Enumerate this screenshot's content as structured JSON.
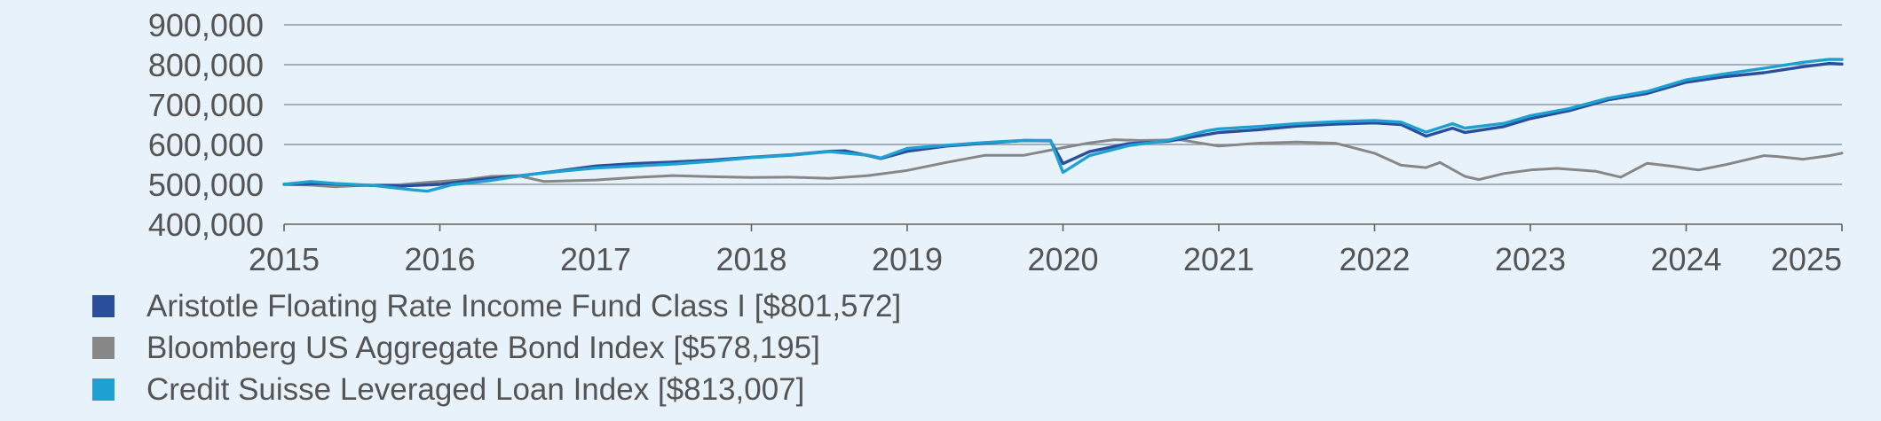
{
  "chart_data": {
    "type": "line",
    "title": "",
    "xlabel": "",
    "ylabel": "",
    "xlim": [
      2015,
      2025
    ],
    "ylim": [
      400000,
      900000
    ],
    "y_ticks": [
      {
        "value": 400000,
        "label": "400,000"
      },
      {
        "value": 500000,
        "label": "500,000"
      },
      {
        "value": 600000,
        "label": "600,000"
      },
      {
        "value": 700000,
        "label": "700,000"
      },
      {
        "value": 800000,
        "label": "800,000"
      },
      {
        "value": 900000,
        "label": "900,000"
      }
    ],
    "x_ticks": [
      {
        "value": 2015,
        "label": "2015"
      },
      {
        "value": 2016,
        "label": "2016"
      },
      {
        "value": 2017,
        "label": "2017"
      },
      {
        "value": 2018,
        "label": "2018"
      },
      {
        "value": 2019,
        "label": "2019"
      },
      {
        "value": 2020,
        "label": "2020"
      },
      {
        "value": 2021,
        "label": "2021"
      },
      {
        "value": 2022,
        "label": "2022"
      },
      {
        "value": 2023,
        "label": "2023"
      },
      {
        "value": 2024,
        "label": "2024"
      },
      {
        "value": 2025,
        "label": "2025"
      }
    ],
    "grid": true,
    "legend_position": "bottom-left",
    "series": [
      {
        "name": "Aristotle Floating Rate Income Fund Class I [$801,572]",
        "color": "#2a4e9c",
        "points": [
          [
            2015.0,
            500000
          ],
          [
            2015.25,
            502000
          ],
          [
            2015.5,
            498000
          ],
          [
            2015.75,
            496000
          ],
          [
            2016.0,
            500000
          ],
          [
            2016.25,
            512000
          ],
          [
            2016.5,
            521000
          ],
          [
            2016.75,
            533000
          ],
          [
            2017.0,
            546000
          ],
          [
            2017.25,
            552000
          ],
          [
            2017.5,
            556000
          ],
          [
            2017.75,
            561000
          ],
          [
            2018.0,
            568000
          ],
          [
            2018.25,
            574000
          ],
          [
            2018.5,
            583000
          ],
          [
            2018.6,
            584000
          ],
          [
            2018.75,
            572000
          ],
          [
            2018.83,
            565000
          ],
          [
            2019.0,
            583000
          ],
          [
            2019.25,
            596000
          ],
          [
            2019.5,
            603000
          ],
          [
            2019.75,
            610000
          ],
          [
            2019.92,
            609000
          ],
          [
            2020.0,
            552000
          ],
          [
            2020.17,
            582000
          ],
          [
            2020.42,
            602000
          ],
          [
            2020.67,
            608000
          ],
          [
            2020.92,
            625000
          ],
          [
            2021.0,
            630000
          ],
          [
            2021.25,
            637000
          ],
          [
            2021.5,
            646000
          ],
          [
            2021.75,
            651000
          ],
          [
            2022.0,
            654000
          ],
          [
            2022.17,
            650000
          ],
          [
            2022.33,
            621000
          ],
          [
            2022.5,
            641000
          ],
          [
            2022.58,
            630000
          ],
          [
            2022.83,
            645000
          ],
          [
            2023.0,
            665000
          ],
          [
            2023.25,
            685000
          ],
          [
            2023.5,
            712000
          ],
          [
            2023.75,
            728000
          ],
          [
            2024.0,
            756000
          ],
          [
            2024.25,
            770000
          ],
          [
            2024.5,
            780000
          ],
          [
            2024.75,
            795000
          ],
          [
            2024.92,
            803000
          ],
          [
            2025.0,
            801572
          ]
        ]
      },
      {
        "name": "Bloomberg US Aggregate Bond Index [$578,195]",
        "color": "#878787",
        "points": [
          [
            2015.0,
            500000
          ],
          [
            2015.17,
            498000
          ],
          [
            2015.33,
            494000
          ],
          [
            2015.5,
            497000
          ],
          [
            2015.75,
            499000
          ],
          [
            2015.92,
            505000
          ],
          [
            2016.17,
            512000
          ],
          [
            2016.33,
            520000
          ],
          [
            2016.5,
            522000
          ],
          [
            2016.67,
            507000
          ],
          [
            2017.0,
            511000
          ],
          [
            2017.25,
            517000
          ],
          [
            2017.5,
            522000
          ],
          [
            2017.75,
            519000
          ],
          [
            2018.0,
            517000
          ],
          [
            2018.25,
            518000
          ],
          [
            2018.5,
            515000
          ],
          [
            2018.75,
            522000
          ],
          [
            2019.0,
            535000
          ],
          [
            2019.25,
            555000
          ],
          [
            2019.5,
            573000
          ],
          [
            2019.75,
            573000
          ],
          [
            2020.0,
            592000
          ],
          [
            2020.17,
            604000
          ],
          [
            2020.33,
            612000
          ],
          [
            2020.5,
            610000
          ],
          [
            2020.75,
            612000
          ],
          [
            2021.0,
            596000
          ],
          [
            2021.25,
            603000
          ],
          [
            2021.5,
            606000
          ],
          [
            2021.75,
            603000
          ],
          [
            2022.0,
            578000
          ],
          [
            2022.17,
            548000
          ],
          [
            2022.33,
            542000
          ],
          [
            2022.42,
            555000
          ],
          [
            2022.58,
            520000
          ],
          [
            2022.67,
            512000
          ],
          [
            2022.83,
            527000
          ],
          [
            2023.0,
            536000
          ],
          [
            2023.17,
            540000
          ],
          [
            2023.42,
            533000
          ],
          [
            2023.58,
            518000
          ],
          [
            2023.75,
            553000
          ],
          [
            2023.92,
            545000
          ],
          [
            2024.08,
            536000
          ],
          [
            2024.25,
            549000
          ],
          [
            2024.5,
            572000
          ],
          [
            2024.58,
            570000
          ],
          [
            2024.75,
            563000
          ],
          [
            2024.92,
            572000
          ],
          [
            2025.0,
            578195
          ]
        ]
      },
      {
        "name": "Credit Suisse Leveraged Loan Index [$813,007]",
        "color": "#1ea0d2",
        "points": [
          [
            2015.0,
            500000
          ],
          [
            2015.17,
            507000
          ],
          [
            2015.33,
            502000
          ],
          [
            2015.58,
            497000
          ],
          [
            2015.83,
            486000
          ],
          [
            2015.92,
            483000
          ],
          [
            2016.08,
            499000
          ],
          [
            2016.33,
            510000
          ],
          [
            2016.58,
            525000
          ],
          [
            2016.83,
            535000
          ],
          [
            2017.0,
            541000
          ],
          [
            2017.25,
            546000
          ],
          [
            2017.5,
            551000
          ],
          [
            2017.75,
            558000
          ],
          [
            2018.0,
            567000
          ],
          [
            2018.25,
            573000
          ],
          [
            2018.5,
            582000
          ],
          [
            2018.75,
            573000
          ],
          [
            2018.83,
            566000
          ],
          [
            2019.0,
            590000
          ],
          [
            2019.25,
            598000
          ],
          [
            2019.5,
            605000
          ],
          [
            2019.75,
            610000
          ],
          [
            2019.92,
            610000
          ],
          [
            2020.0,
            530000
          ],
          [
            2020.17,
            572000
          ],
          [
            2020.42,
            597000
          ],
          [
            2020.67,
            610000
          ],
          [
            2020.92,
            634000
          ],
          [
            2021.0,
            639000
          ],
          [
            2021.25,
            645000
          ],
          [
            2021.5,
            652000
          ],
          [
            2021.75,
            657000
          ],
          [
            2022.0,
            660000
          ],
          [
            2022.17,
            656000
          ],
          [
            2022.33,
            631000
          ],
          [
            2022.5,
            652000
          ],
          [
            2022.58,
            641000
          ],
          [
            2022.83,
            653000
          ],
          [
            2023.0,
            672000
          ],
          [
            2023.25,
            690000
          ],
          [
            2023.5,
            716000
          ],
          [
            2023.75,
            733000
          ],
          [
            2024.0,
            762000
          ],
          [
            2024.25,
            777000
          ],
          [
            2024.5,
            791000
          ],
          [
            2024.75,
            806000
          ],
          [
            2024.92,
            813500
          ],
          [
            2025.0,
            813007
          ]
        ]
      }
    ]
  }
}
